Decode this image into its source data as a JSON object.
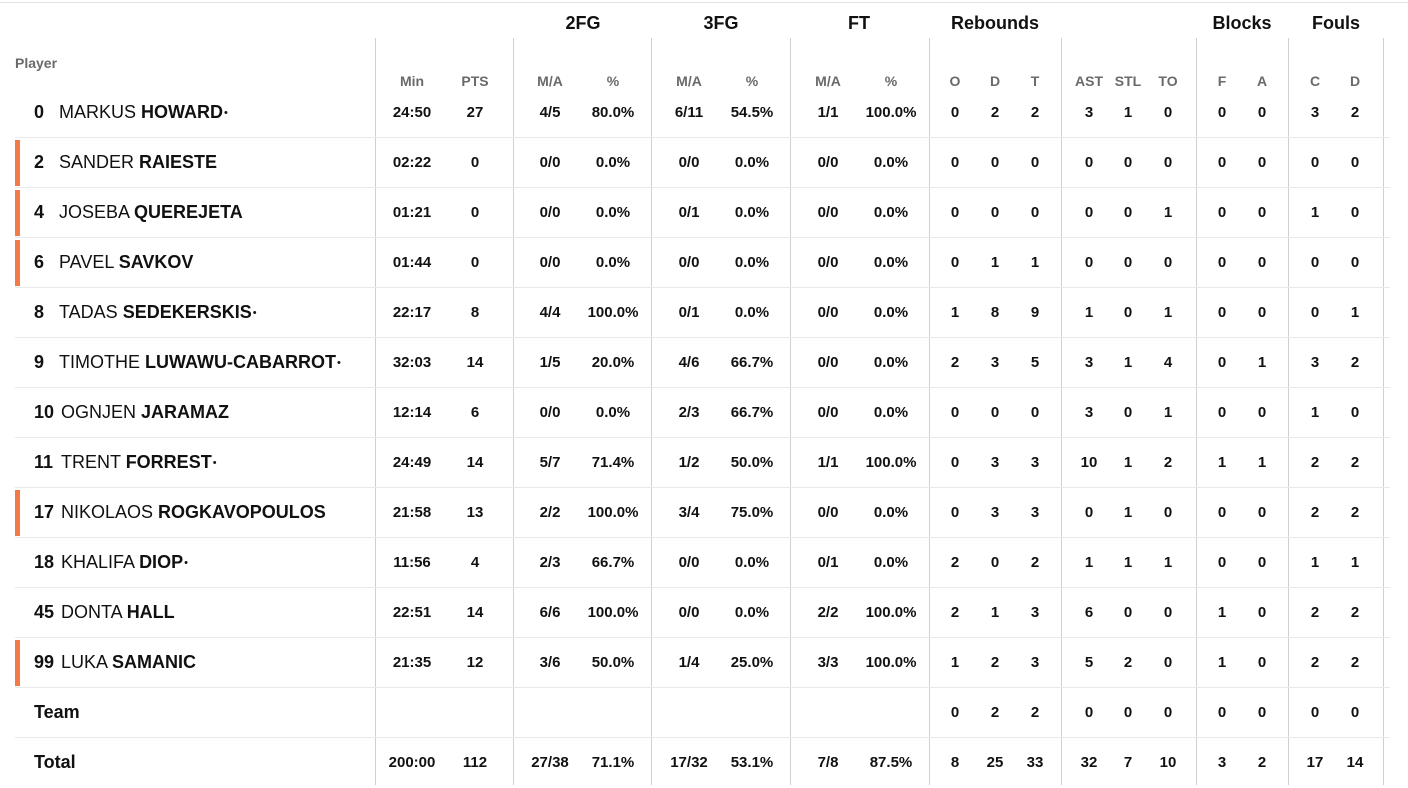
{
  "header": {
    "player_label": "Player",
    "groups": [
      "2FG",
      "3FG",
      "FT",
      "Rebounds",
      "Blocks",
      "Fouls"
    ],
    "columns": [
      "Min",
      "PTS",
      "M/A",
      "%",
      "M/A",
      "%",
      "M/A",
      "%",
      "O",
      "D",
      "T",
      "AST",
      "STL",
      "TO",
      "F",
      "A",
      "C",
      "D"
    ]
  },
  "players": [
    {
      "number": "0",
      "first": "MARKUS",
      "last": "HOWARD",
      "starter": true,
      "accent": false,
      "stats": [
        "24:50",
        "27",
        "4/5",
        "80.0%",
        "6/11",
        "54.5%",
        "1/1",
        "100.0%",
        "0",
        "2",
        "2",
        "3",
        "1",
        "0",
        "0",
        "0",
        "3",
        "2"
      ]
    },
    {
      "number": "2",
      "first": "SANDER",
      "last": "RAIESTE",
      "starter": false,
      "accent": true,
      "stats": [
        "02:22",
        "0",
        "0/0",
        "0.0%",
        "0/0",
        "0.0%",
        "0/0",
        "0.0%",
        "0",
        "0",
        "0",
        "0",
        "0",
        "0",
        "0",
        "0",
        "0",
        "0"
      ]
    },
    {
      "number": "4",
      "first": "JOSEBA",
      "last": "QUEREJETA",
      "starter": false,
      "accent": true,
      "stats": [
        "01:21",
        "0",
        "0/0",
        "0.0%",
        "0/1",
        "0.0%",
        "0/0",
        "0.0%",
        "0",
        "0",
        "0",
        "0",
        "0",
        "1",
        "0",
        "0",
        "1",
        "0"
      ]
    },
    {
      "number": "6",
      "first": "PAVEL",
      "last": "SAVKOV",
      "starter": false,
      "accent": true,
      "stats": [
        "01:44",
        "0",
        "0/0",
        "0.0%",
        "0/0",
        "0.0%",
        "0/0",
        "0.0%",
        "0",
        "1",
        "1",
        "0",
        "0",
        "0",
        "0",
        "0",
        "0",
        "0"
      ]
    },
    {
      "number": "8",
      "first": "TADAS",
      "last": "SEDEKERSKIS",
      "starter": true,
      "accent": false,
      "stats": [
        "22:17",
        "8",
        "4/4",
        "100.0%",
        "0/1",
        "0.0%",
        "0/0",
        "0.0%",
        "1",
        "8",
        "9",
        "1",
        "0",
        "1",
        "0",
        "0",
        "0",
        "1"
      ]
    },
    {
      "number": "9",
      "first": "TIMOTHE",
      "last": "LUWAWU-CABARROT",
      "starter": true,
      "accent": false,
      "stats": [
        "32:03",
        "14",
        "1/5",
        "20.0%",
        "4/6",
        "66.7%",
        "0/0",
        "0.0%",
        "2",
        "3",
        "5",
        "3",
        "1",
        "4",
        "0",
        "1",
        "3",
        "2"
      ]
    },
    {
      "number": "10",
      "first": "OGNJEN",
      "last": "JARAMAZ",
      "starter": false,
      "accent": false,
      "stats": [
        "12:14",
        "6",
        "0/0",
        "0.0%",
        "2/3",
        "66.7%",
        "0/0",
        "0.0%",
        "0",
        "0",
        "0",
        "3",
        "0",
        "1",
        "0",
        "0",
        "1",
        "0"
      ]
    },
    {
      "number": "11",
      "first": "TRENT",
      "last": "FORREST",
      "starter": true,
      "accent": false,
      "stats": [
        "24:49",
        "14",
        "5/7",
        "71.4%",
        "1/2",
        "50.0%",
        "1/1",
        "100.0%",
        "0",
        "3",
        "3",
        "10",
        "1",
        "2",
        "1",
        "1",
        "2",
        "2"
      ]
    },
    {
      "number": "17",
      "first": "NIKOLAOS",
      "last": "ROGKAVOPOULOS",
      "starter": false,
      "accent": true,
      "stats": [
        "21:58",
        "13",
        "2/2",
        "100.0%",
        "3/4",
        "75.0%",
        "0/0",
        "0.0%",
        "0",
        "3",
        "3",
        "0",
        "1",
        "0",
        "0",
        "0",
        "2",
        "2"
      ]
    },
    {
      "number": "18",
      "first": "KHALIFA",
      "last": "DIOP",
      "starter": true,
      "accent": false,
      "stats": [
        "11:56",
        "4",
        "2/3",
        "66.7%",
        "0/0",
        "0.0%",
        "0/1",
        "0.0%",
        "2",
        "0",
        "2",
        "1",
        "1",
        "1",
        "0",
        "0",
        "1",
        "1"
      ]
    },
    {
      "number": "45",
      "first": "DONTA",
      "last": "HALL",
      "starter": false,
      "accent": false,
      "stats": [
        "22:51",
        "14",
        "6/6",
        "100.0%",
        "0/0",
        "0.0%",
        "2/2",
        "100.0%",
        "2",
        "1",
        "3",
        "6",
        "0",
        "0",
        "1",
        "0",
        "2",
        "2"
      ]
    },
    {
      "number": "99",
      "first": "LUKA",
      "last": "SAMANIC",
      "starter": false,
      "accent": true,
      "stats": [
        "21:35",
        "12",
        "3/6",
        "50.0%",
        "1/4",
        "25.0%",
        "3/3",
        "100.0%",
        "1",
        "2",
        "3",
        "5",
        "2",
        "0",
        "1",
        "0",
        "2",
        "2"
      ]
    }
  ],
  "team_row": {
    "label": "Team",
    "stats": [
      "",
      "",
      "",
      "",
      "",
      "",
      "",
      "",
      "0",
      "2",
      "2",
      "0",
      "0",
      "0",
      "0",
      "0",
      "0",
      "0"
    ]
  },
  "total_row": {
    "label": "Total",
    "stats": [
      "200:00",
      "112",
      "27/38",
      "71.1%",
      "17/32",
      "53.1%",
      "7/8",
      "87.5%",
      "8",
      "25",
      "33",
      "32",
      "7",
      "10",
      "3",
      "2",
      "17",
      "14"
    ]
  },
  "colors": {
    "accent": "#f27a49",
    "header_text": "#6a6a6a",
    "divider": "#d0d0d0"
  }
}
